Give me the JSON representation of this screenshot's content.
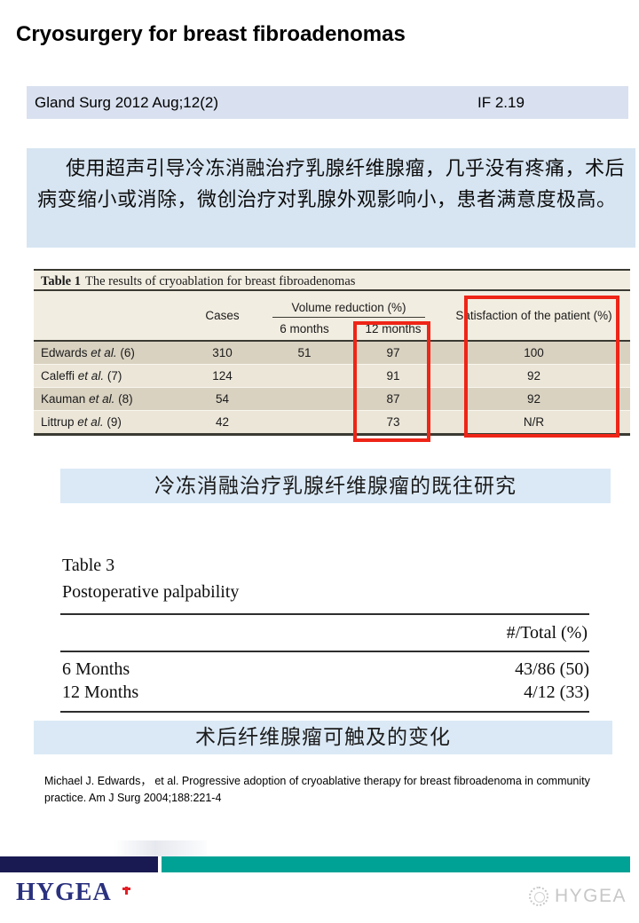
{
  "slide": {
    "title": "Cryosurgery for breast fibroadenomas",
    "journal": {
      "name": "Gland Surg 2012 Aug;12(2)",
      "impact_factor": "IF 2.19"
    },
    "summary": "使用超声引导冷冻消融治疗乳腺纤维腺瘤，几乎没有疼痛，术后病变缩小或消除，微创治疗对乳腺外观影响小，患者满意度极高。",
    "caption1": "冷冻消融治疗乳腺纤维腺瘤的既往研究",
    "caption2": "术后纤维腺瘤可触及的变化",
    "citation": "Michael J. Edwards， et al. Progressive adoption of cryoablative therapy for breast fibroadenoma in community practice. Am J Surg 2004;188:221-4"
  },
  "table1": {
    "title_label": "Table 1",
    "title_text": "The results of cryoablation for breast fibroadenomas",
    "col_cases": "Cases",
    "col_volume": "Volume reduction (%)",
    "col_6m": "6 months",
    "col_12m": "12 months",
    "col_satisfaction": "Satisfaction of the patient (%)",
    "rows": [
      {
        "study": "Edwards",
        "etal": "et al.",
        "ref": "(6)",
        "cases": "310",
        "m6": "51",
        "m12": "97",
        "satisfaction": "100"
      },
      {
        "study": "Caleffi",
        "etal": "et al.",
        "ref": "(7)",
        "cases": "124",
        "m6": "",
        "m12": "91",
        "satisfaction": "92"
      },
      {
        "study": "Kauman",
        "etal": "et al.",
        "ref": "(8)",
        "cases": "54",
        "m6": "",
        "m12": "87",
        "satisfaction": "92"
      },
      {
        "study": "Littrup",
        "etal": "et al.",
        "ref": "(9)",
        "cases": "42",
        "m6": "",
        "m12": "73",
        "satisfaction": "N/R"
      }
    ]
  },
  "table3": {
    "title": "Table 3",
    "subtitle": "Postoperative palpability",
    "col_header": "#/Total (%)",
    "rows": [
      {
        "label": "6 Months",
        "value": "43/86 (50)"
      },
      {
        "label": "12 Months",
        "value": "4/12 (33)"
      }
    ]
  },
  "footer": {
    "logo": "HYGEA",
    "watermark": "HYGEA"
  },
  "colors": {
    "highlight_red": "#ee2517",
    "brand_navy": "#2a317e",
    "footer_navy": "#1a1a52",
    "footer_teal": "#00a296",
    "light_blue_bar": "#d9e1f0",
    "summary_blue": "#d7e5f2",
    "caption_blue": "#dbe9f6",
    "table_tan_dark": "#d9d2c1",
    "table_tan_light": "#ebe6d8"
  }
}
